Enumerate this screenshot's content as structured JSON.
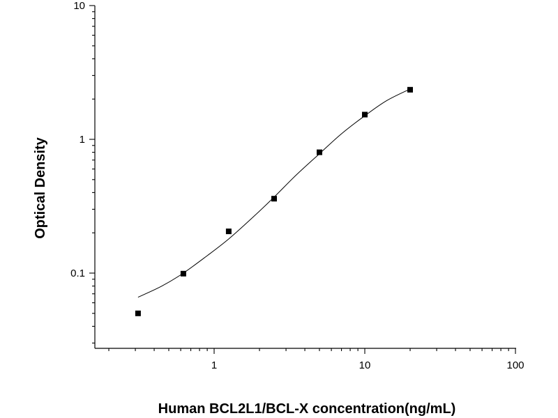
{
  "chart_data": {
    "type": "scatter",
    "title": "",
    "xlabel": "Human BCL2L1/BCL-X concentration(ng/mL)",
    "ylabel": "Optical Density",
    "x_scale": "log",
    "y_scale": "log",
    "xlim": [
      0.15,
      100
    ],
    "ylim": [
      0.03,
      10
    ],
    "x_ticks": [
      {
        "value": 1,
        "label": "1"
      },
      {
        "value": 10,
        "label": "10"
      },
      {
        "value": 100,
        "label": "100"
      }
    ],
    "y_ticks": [
      {
        "value": 0.1,
        "label": "0.1"
      },
      {
        "value": 1,
        "label": "1"
      },
      {
        "value": 10,
        "label": "10"
      }
    ],
    "grid": false,
    "legend": "none",
    "series": [
      {
        "kind": "points",
        "marker": "square",
        "x": [
          0.3125,
          0.625,
          1.25,
          2.5,
          5,
          10,
          20
        ],
        "y": [
          0.05,
          0.099,
          0.205,
          0.36,
          0.8,
          1.53,
          2.35
        ]
      },
      {
        "kind": "fit-curve",
        "x": [
          0.3125,
          0.45,
          0.625,
          0.9,
          1.25,
          1.8,
          2.5,
          3.5,
          5,
          7,
          10,
          14,
          20
        ],
        "y": [
          0.066,
          0.08,
          0.1,
          0.135,
          0.18,
          0.26,
          0.37,
          0.54,
          0.78,
          1.1,
          1.5,
          1.95,
          2.38
        ]
      }
    ],
    "colors": {
      "marker": "#000000",
      "line": "#000000",
      "axis": "#000000"
    }
  }
}
